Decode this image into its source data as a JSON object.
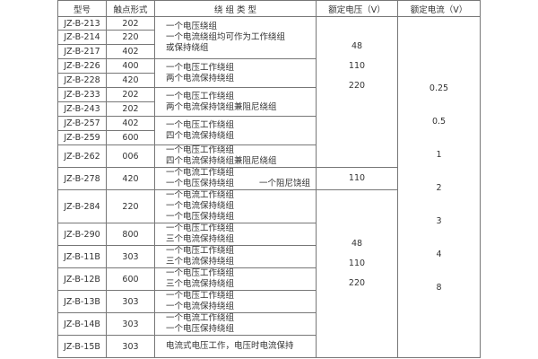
{
  "headers": {
    "model": "型号",
    "contact": "触点形式",
    "winding": "绕 组 类 型",
    "voltage": "额定电压（V）",
    "current": "额定电流（V）"
  },
  "rows": [
    {
      "model": "JZ-B-213",
      "contact": "202"
    },
    {
      "model": "JZ-B-214",
      "contact": "220"
    },
    {
      "model": "JZ-B-217",
      "contact": "402"
    },
    {
      "model": "JZ-B-226",
      "contact": "400"
    },
    {
      "model": "JZ-B-228",
      "contact": "420"
    },
    {
      "model": "JZ-B-233",
      "contact": "202"
    },
    {
      "model": "JZ-B-243",
      "contact": "202"
    },
    {
      "model": "JZ-B-257",
      "contact": "402"
    },
    {
      "model": "JZ-B-259",
      "contact": "600"
    },
    {
      "model": "JZ-B-262",
      "contact": "006"
    },
    {
      "model": "JZ-B-278",
      "contact": "420"
    },
    {
      "model": "JZ-B-284",
      "contact": "220"
    },
    {
      "model": "JZ-B-290",
      "contact": "800"
    },
    {
      "model": "JZ-B-11B",
      "contact": "303"
    },
    {
      "model": "JZ-B-12B",
      "contact": "600"
    },
    {
      "model": "JZ-B-13B",
      "contact": "303"
    },
    {
      "model": "JZ-B-14B",
      "contact": "303"
    },
    {
      "model": "JZ-B-15B",
      "contact": "303"
    }
  ],
  "windings": [
    [
      "一个电压绕组",
      "一个电流绕组均可作为工作绕组",
      "或保持绕组"
    ],
    [
      "一个电压工作绕组",
      "两个电流保持绕组"
    ],
    [
      "一个电压工作绕组",
      "两个电流保持饶组兼阻尼绕组"
    ],
    [
      "一个电压工作绕组",
      "四个电流保持绕组"
    ],
    [
      "一个电压工作绕组",
      "四个电流保持绕组兼阻尼绕组"
    ],
    [
      "一个电流工作绕组",
      "一个电压保持绕组",
      "一个阻尼饶组"
    ],
    [
      "一个电流工作绕组",
      "一个电流保持绕组",
      "一个电压保持绕组"
    ],
    [
      "一个电压工作绕组",
      "三个电流保持绕组"
    ],
    [
      "一个电压工作绕组",
      "三个电流保持绕组"
    ],
    [
      "一个电压工作绕组",
      "三个电流保持绕组"
    ],
    [
      "一个电压工作绕组",
      "一个电流保持绕组"
    ],
    [
      "一个电流工作绕组",
      "一个电压保持绕组"
    ],
    [
      "电流式电压工作，电压时电流保持"
    ]
  ],
  "voltage_groups": [
    [
      "48",
      "110",
      "220"
    ],
    [
      "110"
    ],
    [
      "48",
      "110",
      "220"
    ]
  ],
  "currents": [
    "0.25",
    "0.5",
    "1",
    "2",
    "3",
    "4",
    "8"
  ]
}
